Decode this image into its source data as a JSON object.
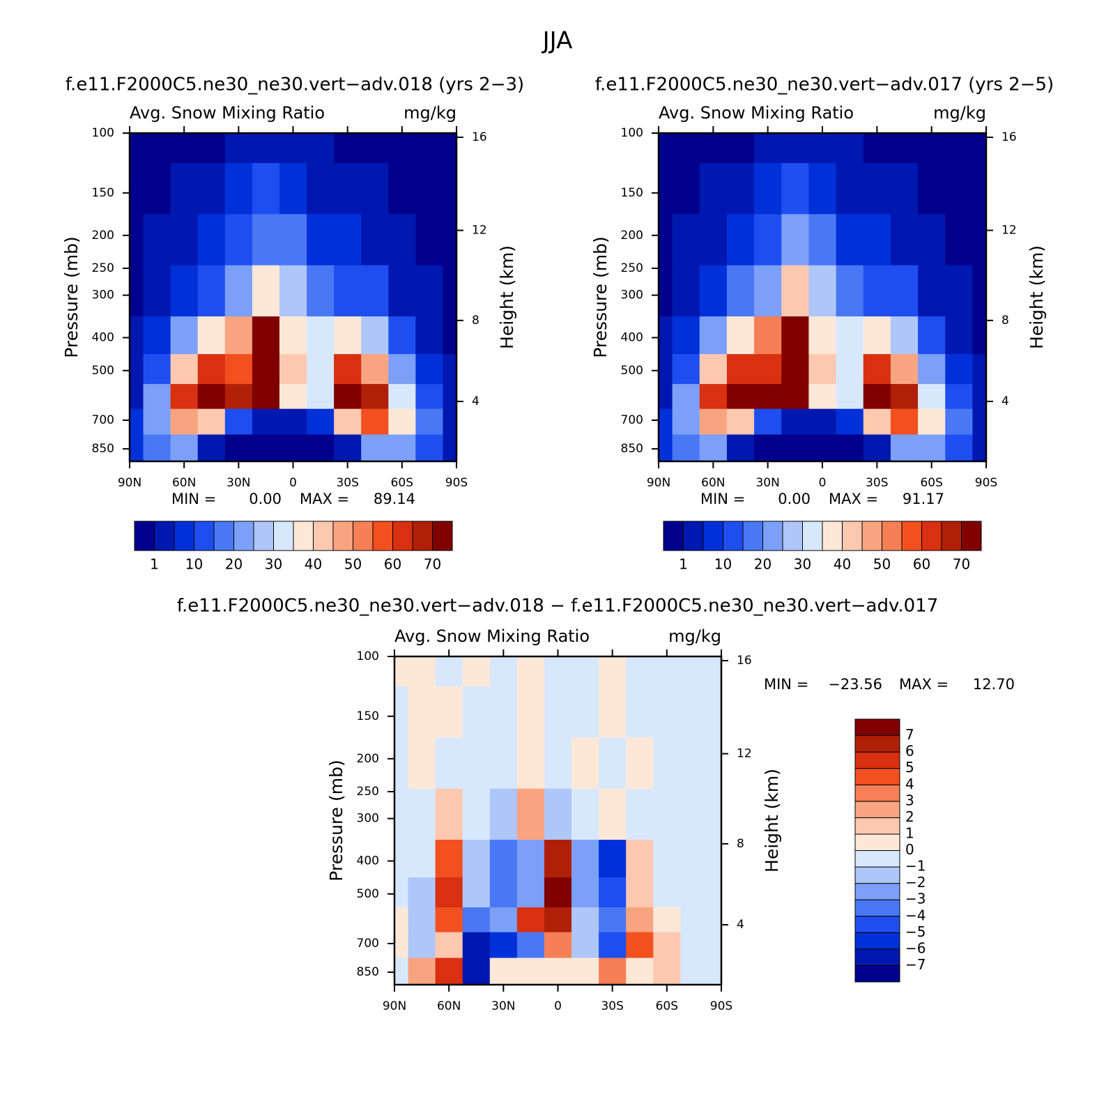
{
  "figure_title": "JJA",
  "chart_data": [
    {
      "type": "contour",
      "title": "f.e11.F2000C5.ne30_ne30.vert−adv.018 (yrs 2−3)",
      "subtitle_left": "Avg. Snow Mixing Ratio",
      "subtitle_right": "mg/kg",
      "ylabel": "Pressure (mb)",
      "y2label": "Height (km)",
      "xlim": [
        90,
        -90
      ],
      "xticks": [
        {
          "value": 90,
          "label": "90N"
        },
        {
          "value": 60,
          "label": "60N"
        },
        {
          "value": 30,
          "label": "30N"
        },
        0,
        {
          "value": -30,
          "label": "30S"
        },
        {
          "value": -60,
          "label": "60S"
        },
        {
          "value": -90,
          "label": "90S"
        }
      ],
      "ylim": [
        100,
        925
      ],
      "yscale": "log",
      "yticks": [
        100,
        150,
        200,
        250,
        300,
        400,
        500,
        700,
        850
      ],
      "y2lim": [
        0.8,
        16.2
      ],
      "y2ticks": [
        4,
        8,
        12,
        16
      ],
      "x": [
        90,
        75,
        60,
        45,
        30,
        15,
        0,
        -15,
        -30,
        -45,
        -60,
        -75,
        -90
      ],
      "y": [
        100,
        150,
        200,
        300,
        400,
        500,
        600,
        700,
        850
      ],
      "z": [
        [
          0.3,
          0.3,
          0.3,
          0.5,
          2,
          4,
          3,
          1,
          0.5,
          0.3,
          0.3,
          0.3,
          0.3
        ],
        [
          0.3,
          0.5,
          1,
          3,
          6,
          10,
          8,
          3,
          2,
          1,
          0.5,
          0.3,
          0.3
        ],
        [
          0.3,
          1,
          3,
          6,
          12,
          18,
          15,
          8,
          6,
          4,
          1,
          0.5,
          0.3
        ],
        [
          0.5,
          3,
          8,
          14,
          22,
          35,
          25,
          16,
          14,
          10,
          4,
          1,
          0.5
        ],
        [
          1,
          6,
          20,
          35,
          45,
          70,
          35,
          30,
          35,
          25,
          10,
          2,
          0.5
        ],
        [
          2,
          12,
          40,
          60,
          55,
          80,
          40,
          30,
          60,
          45,
          20,
          5,
          1
        ],
        [
          4,
          20,
          60,
          85,
          65,
          75,
          35,
          30,
          85,
          65,
          30,
          10,
          2
        ],
        [
          5,
          20,
          45,
          40,
          10,
          2,
          2,
          5,
          40,
          55,
          35,
          15,
          3
        ],
        [
          5,
          15,
          20,
          2,
          0.5,
          0.3,
          0.3,
          0.5,
          3,
          20,
          20,
          10,
          3
        ]
      ],
      "min_text": "MIN =",
      "min": {
        "value": 0,
        "label": "0.00"
      },
      "max_text": "MAX =",
      "max": 89.14,
      "colorbar": {
        "orientation": "horizontal",
        "levels": [
          1,
          5,
          10,
          15,
          20,
          25,
          30,
          35,
          40,
          45,
          50,
          55,
          60,
          65,
          70
        ],
        "ticks": [
          1,
          10,
          20,
          30,
          40,
          50,
          60,
          70
        ],
        "colors": [
          "#00008c",
          "#0018b0",
          "#0030d8",
          "#1f4ef0",
          "#4a78f5",
          "#7ca0f7",
          "#aec6f8",
          "#d8e8fc",
          "#fde8d8",
          "#fcc8b0",
          "#f9a480",
          "#f77f55",
          "#f2501f",
          "#d83010",
          "#b02008",
          "#800000"
        ]
      }
    },
    {
      "type": "contour",
      "title": "f.e11.F2000C5.ne30_ne30.vert−adv.017 (yrs 2−5)",
      "subtitle_left": "Avg. Snow Mixing Ratio",
      "subtitle_right": "mg/kg",
      "ylabel": "Pressure (mb)",
      "y2label": "Height (km)",
      "xlim": [
        90,
        -90
      ],
      "xticks": [
        {
          "value": 90,
          "label": "90N"
        },
        {
          "value": 60,
          "label": "60N"
        },
        {
          "value": 30,
          "label": "30N"
        },
        0,
        {
          "value": -30,
          "label": "30S"
        },
        {
          "value": -60,
          "label": "60S"
        },
        {
          "value": -90,
          "label": "90S"
        }
      ],
      "ylim": [
        100,
        925
      ],
      "yscale": "log",
      "yticks": [
        100,
        150,
        200,
        250,
        300,
        400,
        500,
        700,
        850
      ],
      "y2lim": [
        0.8,
        16.2
      ],
      "y2ticks": [
        4,
        8,
        12,
        16
      ],
      "x": [
        90,
        75,
        60,
        45,
        30,
        15,
        0,
        -15,
        -30,
        -45,
        -60,
        -75,
        -90
      ],
      "y": [
        100,
        150,
        200,
        300,
        400,
        500,
        600,
        700,
        850
      ],
      "z": [
        [
          0.3,
          0.3,
          0.3,
          0.5,
          2,
          4,
          3,
          1,
          0.5,
          0.3,
          0.3,
          0.3,
          0.3
        ],
        [
          0.3,
          0.5,
          1,
          3,
          7,
          11,
          8,
          3,
          2,
          1,
          0.5,
          0.3,
          0.3
        ],
        [
          0.3,
          1,
          3,
          7,
          13,
          20,
          15,
          8,
          6,
          4,
          1,
          0.5,
          0.3
        ],
        [
          0.5,
          3,
          9,
          15,
          24,
          40,
          25,
          16,
          14,
          10,
          4,
          1,
          0.5
        ],
        [
          1,
          7,
          22,
          38,
          50,
          75,
          35,
          30,
          38,
          25,
          10,
          2,
          0.5
        ],
        [
          2,
          13,
          42,
          62,
          60,
          85,
          40,
          30,
          62,
          45,
          20,
          5,
          1
        ],
        [
          4,
          20,
          62,
          88,
          70,
          80,
          38,
          30,
          88,
          65,
          30,
          10,
          2
        ],
        [
          5,
          20,
          45,
          40,
          12,
          2,
          2,
          5,
          42,
          55,
          35,
          15,
          3
        ],
        [
          5,
          15,
          20,
          2,
          0.5,
          0.3,
          0.3,
          0.5,
          3,
          20,
          20,
          10,
          3
        ]
      ],
      "min_text": "MIN =",
      "min": {
        "value": 0,
        "label": "0.00"
      },
      "max_text": "MAX =",
      "max": 91.17,
      "colorbar": {
        "orientation": "horizontal",
        "levels": [
          1,
          5,
          10,
          15,
          20,
          25,
          30,
          35,
          40,
          45,
          50,
          55,
          60,
          65,
          70
        ],
        "ticks": [
          1,
          10,
          20,
          30,
          40,
          50,
          60,
          70
        ],
        "colors": [
          "#00008c",
          "#0018b0",
          "#0030d8",
          "#1f4ef0",
          "#4a78f5",
          "#7ca0f7",
          "#aec6f8",
          "#d8e8fc",
          "#fde8d8",
          "#fcc8b0",
          "#f9a480",
          "#f77f55",
          "#f2501f",
          "#d83010",
          "#b02008",
          "#800000"
        ]
      }
    },
    {
      "type": "contour",
      "title": "f.e11.F2000C5.ne30_ne30.vert−adv.018 − f.e11.F2000C5.ne30_ne30.vert−adv.017",
      "subtitle_left": "Avg. Snow Mixing Ratio",
      "subtitle_right": "mg/kg",
      "ylabel": "Pressure (mb)",
      "y2label": "Height (km)",
      "xlim": [
        90,
        -90
      ],
      "xticks": [
        {
          "value": 90,
          "label": "90N"
        },
        {
          "value": 60,
          "label": "60N"
        },
        {
          "value": 30,
          "label": "30N"
        },
        0,
        {
          "value": -30,
          "label": "30S"
        },
        {
          "value": -60,
          "label": "60S"
        },
        {
          "value": -90,
          "label": "90S"
        }
      ],
      "ylim": [
        100,
        925
      ],
      "yscale": "log",
      "yticks": [
        100,
        150,
        200,
        250,
        300,
        400,
        500,
        700,
        850
      ],
      "y2lim": [
        0.8,
        16.2
      ],
      "y2ticks": [
        4,
        8,
        12,
        16
      ],
      "x": [
        90,
        75,
        60,
        45,
        30,
        15,
        0,
        -15,
        -30,
        -45,
        -60,
        -75,
        -90
      ],
      "y": [
        100,
        150,
        200,
        300,
        400,
        500,
        600,
        700,
        850
      ],
      "z": [
        [
          0.3,
          0.3,
          -0.3,
          0.3,
          -0.3,
          0.3,
          -0.3,
          -0.3,
          0.3,
          -0.3,
          -0.3,
          -0.3,
          -0.3
        ],
        [
          -0.3,
          0.3,
          0.3,
          -0.3,
          -0.3,
          0.3,
          -0.3,
          -0.3,
          0.3,
          -0.3,
          -0.3,
          -0.3,
          -0.3
        ],
        [
          -0.3,
          0.3,
          -0.3,
          -0.3,
          -0.3,
          0.3,
          -0.3,
          0.3,
          -0.3,
          0.3,
          -0.3,
          -0.3,
          -0.3
        ],
        [
          -0.3,
          -0.5,
          1,
          -1,
          -2,
          2,
          -2,
          -1,
          0.5,
          -0.3,
          -0.3,
          -0.3,
          -0.3
        ],
        [
          -0.3,
          -1,
          4,
          -2,
          -4,
          -3,
          6,
          -3,
          -6,
          1,
          -0.3,
          -0.3,
          -0.3
        ],
        [
          -0.3,
          -1.5,
          5,
          -2,
          -4,
          -3,
          7,
          -3,
          -5,
          1.5,
          -0.3,
          -0.3,
          -0.3
        ],
        [
          0.5,
          -1.5,
          4,
          -4,
          -3,
          5,
          6,
          -2,
          -4,
          2,
          0.5,
          -0.3,
          -0.3
        ],
        [
          0.5,
          -2,
          1,
          -7,
          -6,
          -4,
          3,
          -2,
          -5,
          4,
          1,
          -0.5,
          -0.5
        ],
        [
          -0.5,
          2,
          5,
          -7,
          0.5,
          0.5,
          0.5,
          0.5,
          3,
          0.5,
          1,
          -0.5,
          -1
        ]
      ],
      "min_text": "MIN =",
      "min": {
        "value": -23.56,
        "label": "−23.56"
      },
      "max_text": "MAX =",
      "max": {
        "value": 12.7,
        "label": "12.70"
      },
      "colorbar": {
        "orientation": "vertical",
        "levels": [
          -7,
          -6,
          -5,
          -4,
          -3,
          -2,
          -1,
          0,
          1,
          2,
          3,
          4,
          5,
          6,
          7
        ],
        "ticks": [
          {
            "value": -7,
            "label": "−7"
          },
          {
            "value": -6,
            "label": "−6"
          },
          {
            "value": -5,
            "label": "−5"
          },
          {
            "value": -4,
            "label": "−4"
          },
          {
            "value": -3,
            "label": "−3"
          },
          {
            "value": -2,
            "label": "−2"
          },
          {
            "value": -1,
            "label": "−1"
          },
          0,
          1,
          2,
          3,
          4,
          5,
          6,
          7
        ],
        "colors": [
          "#00008c",
          "#0018b0",
          "#0030d8",
          "#1f4ef0",
          "#4a78f5",
          "#7ca0f7",
          "#aec6f8",
          "#d8e8fc",
          "#fde8d8",
          "#fcc8b0",
          "#f9a480",
          "#f77f55",
          "#f2501f",
          "#d83010",
          "#b02008",
          "#800000"
        ]
      }
    }
  ]
}
